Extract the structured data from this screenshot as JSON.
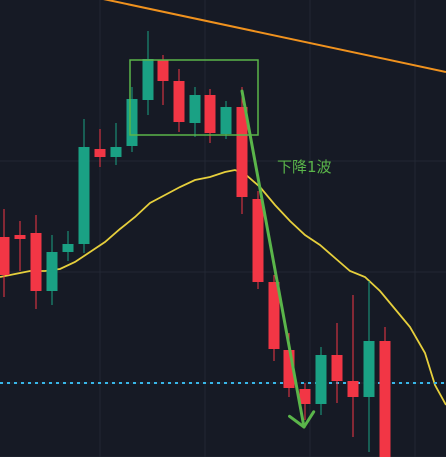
{
  "colors": {
    "background": "#161a25",
    "grid": "#222734",
    "up": "#1aa184",
    "down": "#f23645",
    "ma_line": "#e6cf3c",
    "trendline": "#f0921e",
    "hline": "#38b6e8",
    "annotation": "#5ab54a"
  },
  "annotation": {
    "label": "下降1波"
  },
  "chart_data": {
    "type": "candlestick",
    "title": "",
    "xlabel": "",
    "ylabel": "",
    "ylim": [
      0,
      457
    ],
    "grid": true,
    "legend": "none",
    "candles": [
      {
        "x": 4,
        "open": 220,
        "close": 182,
        "high": 248,
        "low": 160
      },
      {
        "x": 20,
        "open": 222,
        "close": 218,
        "high": 236,
        "low": 186
      },
      {
        "x": 36,
        "open": 224,
        "close": 166,
        "high": 242,
        "low": 148
      },
      {
        "x": 52,
        "open": 166,
        "close": 205,
        "high": 222,
        "low": 152
      },
      {
        "x": 68,
        "open": 205,
        "close": 213,
        "high": 226,
        "low": 196
      },
      {
        "x": 84,
        "open": 213,
        "close": 310,
        "high": 338,
        "low": 204
      },
      {
        "x": 100,
        "open": 308,
        "close": 300,
        "high": 328,
        "low": 290
      },
      {
        "x": 116,
        "open": 300,
        "close": 310,
        "high": 334,
        "low": 292
      },
      {
        "x": 132,
        "open": 311,
        "close": 358,
        "high": 370,
        "low": 305
      },
      {
        "x": 148,
        "open": 357,
        "close": 398,
        "high": 426,
        "low": 342
      },
      {
        "x": 163,
        "open": 397,
        "close": 376,
        "high": 402,
        "low": 352
      },
      {
        "x": 179,
        "open": 376,
        "close": 335,
        "high": 388,
        "low": 325
      },
      {
        "x": 195,
        "open": 334,
        "close": 362,
        "high": 370,
        "low": 320
      },
      {
        "x": 210,
        "open": 362,
        "close": 324,
        "high": 368,
        "low": 314
      },
      {
        "x": 226,
        "open": 323,
        "close": 350,
        "high": 356,
        "low": 318
      },
      {
        "x": 242,
        "open": 350,
        "close": 260,
        "high": 370,
        "low": 243
      },
      {
        "x": 258,
        "open": 258,
        "close": 175,
        "high": 266,
        "low": 168
      },
      {
        "x": 274,
        "open": 175,
        "close": 108,
        "high": 182,
        "low": 96
      },
      {
        "x": 289,
        "open": 107,
        "close": 69,
        "high": 124,
        "low": 60
      },
      {
        "x": 305,
        "open": 68,
        "close": 53,
        "high": 74,
        "low": 37
      },
      {
        "x": 321,
        "open": 53,
        "close": 102,
        "high": 110,
        "low": 42
      },
      {
        "x": 337,
        "open": 102,
        "close": 76,
        "high": 134,
        "low": 54
      },
      {
        "x": 353,
        "open": 76,
        "close": 60,
        "high": 162,
        "low": 20
      },
      {
        "x": 369,
        "open": 60,
        "close": 116,
        "high": 176,
        "low": 5
      },
      {
        "x": 385,
        "open": 116,
        "close": 0,
        "high": 130,
        "low": 0
      }
    ],
    "ma": [
      [
        0,
        180
      ],
      [
        15,
        183
      ],
      [
        30,
        186
      ],
      [
        45,
        186
      ],
      [
        60,
        188
      ],
      [
        75,
        195
      ],
      [
        90,
        205
      ],
      [
        105,
        215
      ],
      [
        120,
        228
      ],
      [
        135,
        240
      ],
      [
        150,
        254
      ],
      [
        165,
        262
      ],
      [
        180,
        270
      ],
      [
        195,
        277
      ],
      [
        210,
        280
      ],
      [
        225,
        285
      ],
      [
        235,
        287
      ],
      [
        245,
        283
      ],
      [
        260,
        270
      ],
      [
        275,
        252
      ],
      [
        290,
        236
      ],
      [
        305,
        222
      ],
      [
        320,
        212
      ],
      [
        335,
        199
      ],
      [
        350,
        186
      ],
      [
        365,
        180
      ],
      [
        380,
        166
      ],
      [
        395,
        148
      ],
      [
        410,
        130
      ],
      [
        425,
        104
      ],
      [
        435,
        72
      ],
      [
        446,
        52
      ]
    ],
    "trendline": [
      [
        0,
        480
      ],
      [
        446,
        385
      ]
    ],
    "hline": 74,
    "box": {
      "x": [
        130,
        258
      ],
      "y": [
        322,
        397
      ]
    },
    "arrow": [
      [
        242,
        366
      ],
      [
        304,
        30
      ]
    ]
  }
}
